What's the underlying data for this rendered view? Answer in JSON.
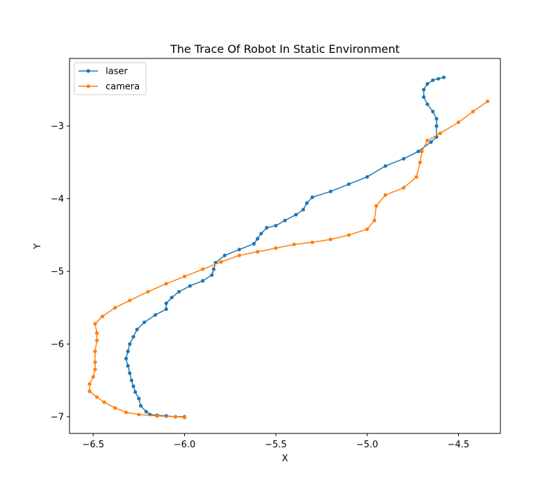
{
  "chart_data": {
    "type": "line",
    "title": "The Trace Of Robot In Static Environment",
    "xlabel": "X",
    "ylabel": "Y",
    "xlim": [
      -6.63,
      -4.27
    ],
    "ylim": [
      -7.23,
      -2.07
    ],
    "xticks": [
      -6.5,
      -6.0,
      -5.5,
      -5.0,
      -4.5
    ],
    "xtick_labels": [
      "−6.5",
      "−6.0",
      "−5.5",
      "−5.0",
      "−4.5"
    ],
    "yticks": [
      -7,
      -6,
      -5,
      -4,
      -3
    ],
    "ytick_labels": [
      "−7",
      "−6",
      "−5",
      "−4",
      "−3"
    ],
    "legend_position": "upper-left",
    "grid": false,
    "series": [
      {
        "name": "laser",
        "color": "#1f77b4",
        "marker": "circle",
        "points": [
          [
            -6.0,
            -7.0
          ],
          [
            -6.05,
            -7.0
          ],
          [
            -6.1,
            -6.99
          ],
          [
            -6.15,
            -6.98
          ],
          [
            -6.19,
            -6.97
          ],
          [
            -6.21,
            -6.93
          ],
          [
            -6.24,
            -6.85
          ],
          [
            -6.25,
            -6.75
          ],
          [
            -6.27,
            -6.66
          ],
          [
            -6.28,
            -6.58
          ],
          [
            -6.29,
            -6.5
          ],
          [
            -6.3,
            -6.4
          ],
          [
            -6.31,
            -6.3
          ],
          [
            -6.32,
            -6.2
          ],
          [
            -6.31,
            -6.1
          ],
          [
            -6.3,
            -6.0
          ],
          [
            -6.28,
            -5.9
          ],
          [
            -6.26,
            -5.8
          ],
          [
            -6.22,
            -5.7
          ],
          [
            -6.16,
            -5.6
          ],
          [
            -6.1,
            -5.52
          ],
          [
            -6.1,
            -5.44
          ],
          [
            -6.07,
            -5.36
          ],
          [
            -6.03,
            -5.28
          ],
          [
            -5.97,
            -5.2
          ],
          [
            -5.9,
            -5.13
          ],
          [
            -5.85,
            -5.05
          ],
          [
            -5.84,
            -4.97
          ],
          [
            -5.83,
            -4.88
          ],
          [
            -5.78,
            -4.78
          ],
          [
            -5.7,
            -4.7
          ],
          [
            -5.62,
            -4.62
          ],
          [
            -5.6,
            -4.55
          ],
          [
            -5.58,
            -4.48
          ],
          [
            -5.55,
            -4.4
          ],
          [
            -5.5,
            -4.37
          ],
          [
            -5.45,
            -4.3
          ],
          [
            -5.39,
            -4.22
          ],
          [
            -5.35,
            -4.15
          ],
          [
            -5.33,
            -4.06
          ],
          [
            -5.3,
            -3.98
          ],
          [
            -5.2,
            -3.9
          ],
          [
            -5.1,
            -3.8
          ],
          [
            -5.0,
            -3.7
          ],
          [
            -4.9,
            -3.55
          ],
          [
            -4.8,
            -3.45
          ],
          [
            -4.72,
            -3.35
          ],
          [
            -4.65,
            -3.22
          ],
          [
            -4.62,
            -3.15
          ],
          [
            -4.62,
            -3.0
          ],
          [
            -4.62,
            -2.9
          ],
          [
            -4.64,
            -2.8
          ],
          [
            -4.67,
            -2.7
          ],
          [
            -4.69,
            -2.6
          ],
          [
            -4.69,
            -2.5
          ],
          [
            -4.67,
            -2.42
          ],
          [
            -4.64,
            -2.37
          ],
          [
            -4.61,
            -2.35
          ],
          [
            -4.58,
            -2.33
          ]
        ]
      },
      {
        "name": "camera",
        "color": "#ff7f0e",
        "marker": "circle",
        "points": [
          [
            -6.0,
            -7.01
          ],
          [
            -6.05,
            -7.0
          ],
          [
            -6.15,
            -6.99
          ],
          [
            -6.25,
            -6.97
          ],
          [
            -6.32,
            -6.94
          ],
          [
            -6.38,
            -6.88
          ],
          [
            -6.44,
            -6.8
          ],
          [
            -6.48,
            -6.73
          ],
          [
            -6.52,
            -6.65
          ],
          [
            -6.52,
            -6.55
          ],
          [
            -6.5,
            -6.45
          ],
          [
            -6.49,
            -6.35
          ],
          [
            -6.49,
            -6.25
          ],
          [
            -6.49,
            -6.1
          ],
          [
            -6.48,
            -5.95
          ],
          [
            -6.48,
            -5.85
          ],
          [
            -6.49,
            -5.72
          ],
          [
            -6.45,
            -5.62
          ],
          [
            -6.38,
            -5.5
          ],
          [
            -6.3,
            -5.4
          ],
          [
            -6.2,
            -5.28
          ],
          [
            -6.1,
            -5.17
          ],
          [
            -6.0,
            -5.07
          ],
          [
            -5.9,
            -4.97
          ],
          [
            -5.8,
            -4.87
          ],
          [
            -5.7,
            -4.78
          ],
          [
            -5.6,
            -4.73
          ],
          [
            -5.5,
            -4.68
          ],
          [
            -5.4,
            -4.63
          ],
          [
            -5.3,
            -4.6
          ],
          [
            -5.2,
            -4.56
          ],
          [
            -5.1,
            -4.5
          ],
          [
            -5.0,
            -4.42
          ],
          [
            -4.96,
            -4.3
          ],
          [
            -4.95,
            -4.1
          ],
          [
            -4.9,
            -3.95
          ],
          [
            -4.8,
            -3.85
          ],
          [
            -4.73,
            -3.7
          ],
          [
            -4.71,
            -3.5
          ],
          [
            -4.7,
            -3.35
          ],
          [
            -4.67,
            -3.2
          ],
          [
            -4.6,
            -3.1
          ],
          [
            -4.5,
            -2.95
          ],
          [
            -4.42,
            -2.8
          ],
          [
            -4.34,
            -2.66
          ]
        ]
      }
    ]
  }
}
